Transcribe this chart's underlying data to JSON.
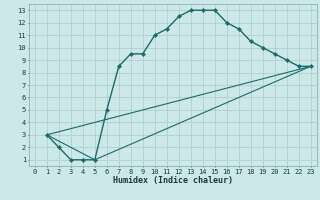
{
  "title": "",
  "xlabel": "Humidex (Indice chaleur)",
  "bg_color": "#cce8e8",
  "grid_color": "#aacccc",
  "line_color": "#1a6b6b",
  "xlim": [
    -0.5,
    23.5
  ],
  "ylim": [
    0.5,
    13.5
  ],
  "xticks": [
    0,
    1,
    2,
    3,
    4,
    5,
    6,
    7,
    8,
    9,
    10,
    11,
    12,
    13,
    14,
    15,
    16,
    17,
    18,
    19,
    20,
    21,
    22,
    23
  ],
  "yticks": [
    1,
    2,
    3,
    4,
    5,
    6,
    7,
    8,
    9,
    10,
    11,
    12,
    13
  ],
  "curve_x": [
    1,
    2,
    3,
    4,
    5,
    6,
    7,
    8,
    9,
    10,
    11,
    12,
    13,
    14,
    15,
    16,
    17,
    18,
    19,
    20,
    21,
    22,
    23
  ],
  "curve_y": [
    3,
    2,
    1,
    1,
    1,
    5,
    8.5,
    9.5,
    9.5,
    11,
    11.5,
    12.5,
    13,
    13,
    13,
    12,
    11.5,
    10.5,
    10,
    9.5,
    9,
    8.5,
    8.5
  ],
  "line2_x": [
    1,
    23
  ],
  "line2_y": [
    3,
    8.5
  ],
  "line3_x": [
    1,
    5,
    23
  ],
  "line3_y": [
    3,
    1,
    8.5
  ]
}
